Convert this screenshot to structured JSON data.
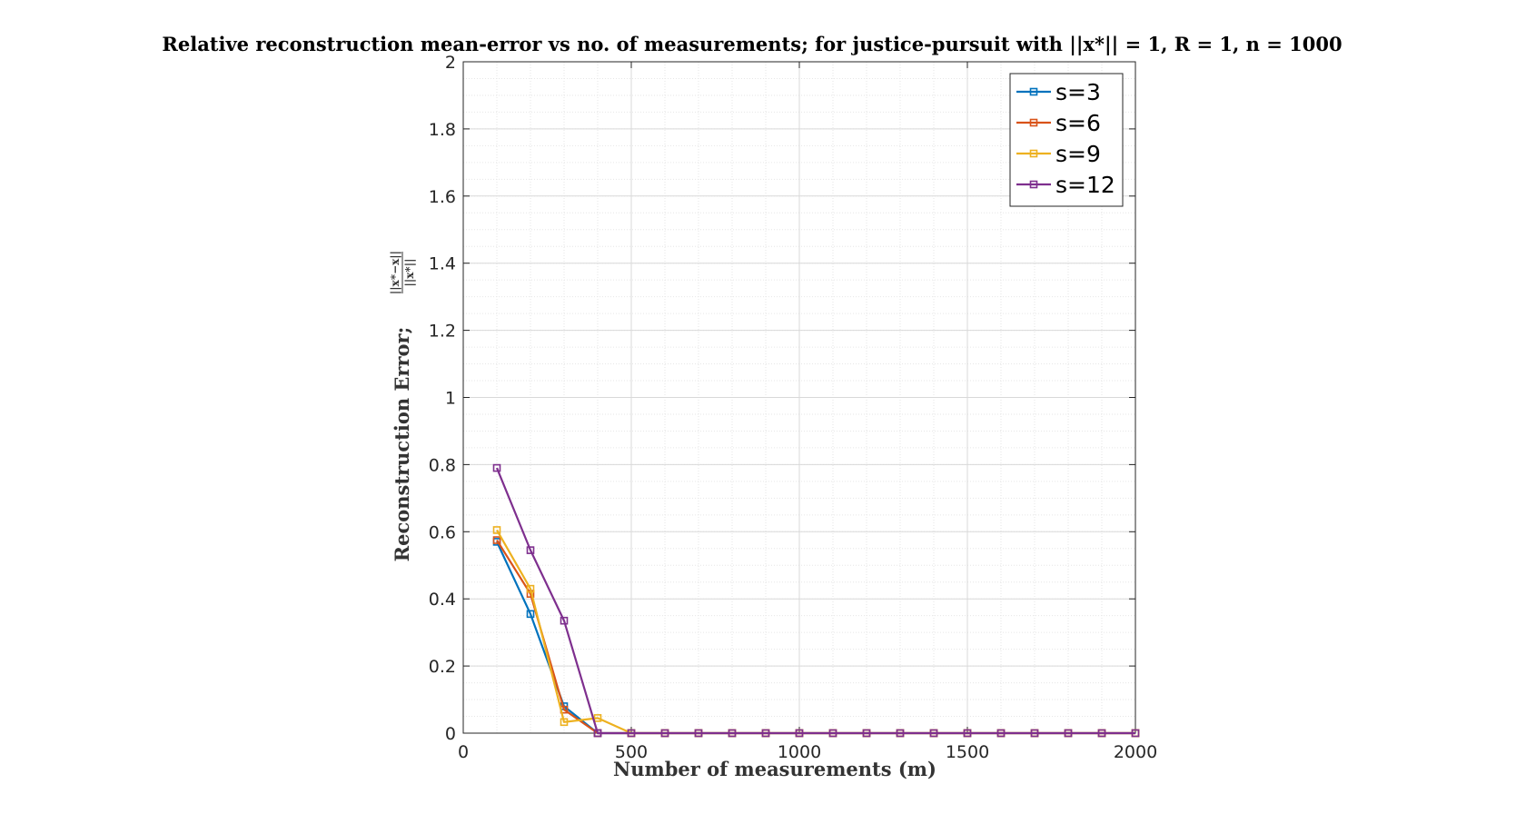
{
  "chart_data": {
    "type": "line",
    "title": "Relative reconstruction mean-error vs no. of measurements; for justice-pursuit with ||x*|| = 1, R = 1, n = 1000",
    "xlabel": "Number of measurements (m)",
    "ylabel": "Reconstruction Error;",
    "ylabel_fraction": {
      "numerator": "||x*−x||",
      "denominator": "||x*||"
    },
    "xlim": [
      0,
      2000
    ],
    "ylim": [
      0,
      2
    ],
    "xticks": [
      0,
      500,
      1000,
      1500,
      2000
    ],
    "yticks": [
      0,
      0.2,
      0.4,
      0.6,
      0.8,
      1,
      1.2,
      1.4,
      1.6,
      1.8,
      2
    ],
    "xtick_labels": [
      "0",
      "500",
      "1000",
      "1500",
      "2000"
    ],
    "ytick_labels": [
      "0",
      "0.2",
      "0.4",
      "0.6",
      "0.8",
      "1",
      "1.2",
      "1.4",
      "1.6",
      "1.8",
      "2"
    ],
    "grid": true,
    "minor_grid": true,
    "legend_position": "top-right",
    "x": [
      100,
      200,
      300,
      400,
      500,
      600,
      700,
      800,
      900,
      1000,
      1100,
      1200,
      1300,
      1400,
      1500,
      1600,
      1700,
      1800,
      1900,
      2000
    ],
    "series": [
      {
        "name": "s=3",
        "color": "#0072BD",
        "values": [
          0.57,
          0.355,
          0.08,
          0,
          0,
          0,
          0,
          0,
          0,
          0,
          0,
          0,
          0,
          0,
          0,
          0,
          0,
          0,
          0,
          0
        ]
      },
      {
        "name": "s=6",
        "color": "#D95319",
        "values": [
          0.575,
          0.415,
          0.07,
          0,
          0,
          0,
          0,
          0,
          0,
          0,
          0,
          0,
          0,
          0,
          0,
          0,
          0,
          0,
          0,
          0
        ]
      },
      {
        "name": "s=9",
        "color": "#EDB120",
        "values": [
          0.605,
          0.43,
          0.033,
          0.045,
          0,
          0,
          0,
          0,
          0,
          0,
          0,
          0,
          0,
          0,
          0,
          0,
          0,
          0,
          0,
          0
        ]
      },
      {
        "name": "s=12",
        "color": "#7E2F8E",
        "values": [
          0.79,
          0.545,
          0.335,
          0,
          0,
          0,
          0,
          0,
          0,
          0,
          0,
          0,
          0,
          0,
          0,
          0,
          0,
          0,
          0,
          0
        ]
      }
    ]
  }
}
